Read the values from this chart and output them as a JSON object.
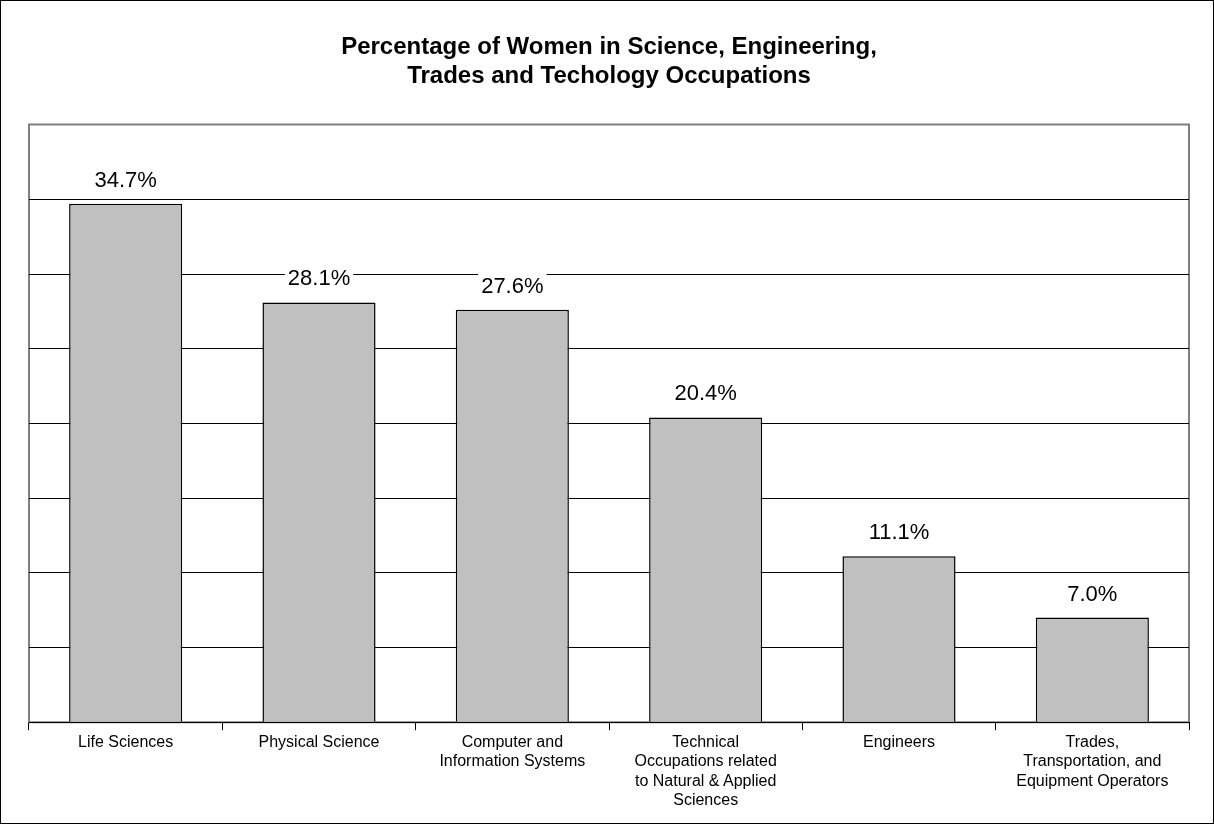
{
  "chart_data": {
    "type": "bar",
    "title": "Percentage of Women in Science, Engineering, Trades and Techology Occupations",
    "categories": [
      "Life Sciences",
      "Physical Science",
      "Computer and Information Systems",
      "Technical Occupations related to Natural & Applied Sciences",
      "Engineers",
      "Trades, Transportation, and Equipment Operators"
    ],
    "values": [
      34.7,
      28.1,
      27.6,
      20.4,
      11.1,
      7.0
    ],
    "value_labels": [
      "34.7%",
      "28.1%",
      "27.6%",
      "20.4%",
      "11.1%",
      "7.0%"
    ],
    "color": "#c0c0c0",
    "ylim": [
      0,
      40
    ],
    "yticks": [
      {
        "value": 0,
        "label": null
      },
      {
        "value": 5,
        "label": null
      },
      {
        "value": 10,
        "label": null
      },
      {
        "value": 15,
        "label": null
      },
      {
        "value": 20,
        "label": null
      },
      {
        "value": 25,
        "label": null
      },
      {
        "value": 30,
        "label": null
      },
      {
        "value": 35,
        "label": null
      }
    ],
    "grid": "y",
    "tick_labels": "x",
    "legend": false
  }
}
